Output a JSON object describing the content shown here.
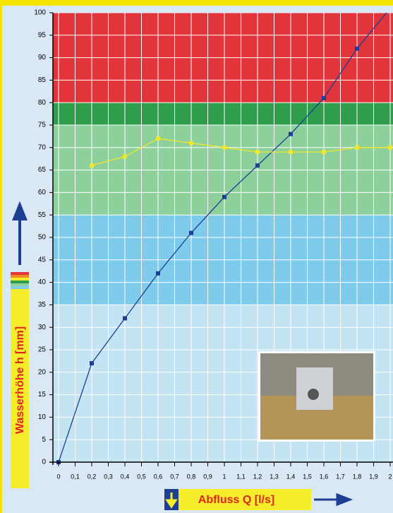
{
  "chart_data": {
    "type": "line",
    "x_label": "Abfluss Q [l/s]",
    "y_label": "Wasserhöhe h [mm]",
    "xlim": [
      0,
      2
    ],
    "ylim": [
      0,
      100
    ],
    "xticks": [
      0,
      {
        "value": 0.1,
        "label": "0,1"
      },
      {
        "value": 0.2,
        "label": "0,2"
      },
      {
        "value": 0.3,
        "label": "0,3"
      },
      {
        "value": 0.4,
        "label": "0,4"
      },
      {
        "value": 0.5,
        "label": "0,5"
      },
      {
        "value": 0.6,
        "label": "0,6"
      },
      {
        "value": 0.7,
        "label": "0,7"
      },
      {
        "value": 0.8,
        "label": "0,8"
      },
      {
        "value": 0.9,
        "label": "0,9"
      },
      1,
      {
        "value": 1.1,
        "label": "1,1"
      },
      {
        "value": 1.2,
        "label": "1,2"
      },
      {
        "value": 1.3,
        "label": "1,3"
      },
      {
        "value": 1.4,
        "label": "1,4"
      },
      {
        "value": 1.5,
        "label": "1,5"
      },
      {
        "value": 1.6,
        "label": "1,6"
      },
      {
        "value": 1.7,
        "label": "1,7"
      },
      {
        "value": 1.8,
        "label": "1,8"
      },
      {
        "value": 1.9,
        "label": "1,9"
      },
      2
    ],
    "yticks": [
      0,
      5,
      10,
      15,
      20,
      25,
      30,
      35,
      40,
      45,
      50,
      55,
      60,
      65,
      70,
      75,
      80,
      85,
      90,
      95,
      100
    ],
    "grid": true,
    "bands": [
      {
        "from": 0,
        "to": 35,
        "color": "#c4e4f4"
      },
      {
        "from": 35,
        "to": 55,
        "color": "#7fcbeb"
      },
      {
        "from": 55,
        "to": 75,
        "color": "#8ed09c"
      },
      {
        "from": 75,
        "to": 80,
        "color": "#2f9e4c"
      },
      {
        "from": 80,
        "to": 100,
        "color": "#e2343b"
      }
    ],
    "series": [
      {
        "color": "#1c3f94",
        "x": [
          0,
          0.2,
          0.4,
          0.6,
          0.8,
          1.0,
          1.2,
          1.4,
          1.6,
          1.8,
          2.0
        ],
        "values": [
          0,
          22,
          32,
          42,
          51,
          59,
          66,
          73,
          81,
          92,
          101
        ]
      },
      {
        "color": "#f2e62c",
        "x": [
          0.2,
          0.4,
          0.6,
          0.8,
          1.0,
          1.2,
          1.4,
          1.6,
          1.8,
          2.0
        ],
        "values": [
          66,
          68,
          72,
          71,
          70,
          69,
          69,
          69,
          70,
          70
        ]
      }
    ]
  }
}
